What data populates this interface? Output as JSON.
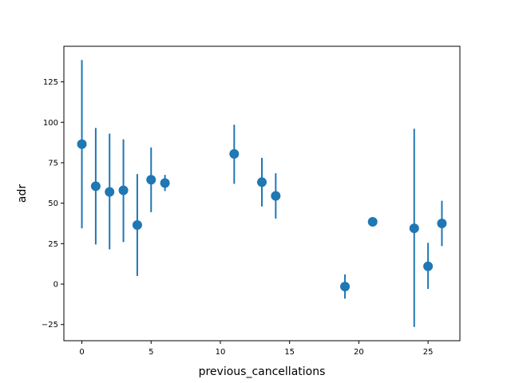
{
  "chart_data": {
    "type": "scatter",
    "xlabel": "previous_cancellations",
    "ylabel": "adr",
    "xlim": [
      -1.3,
      27.3
    ],
    "ylim": [
      -35,
      147
    ],
    "x_ticks": [
      0,
      5,
      10,
      15,
      20,
      25
    ],
    "y_ticks": [
      -25,
      0,
      25,
      50,
      75,
      100,
      125
    ],
    "grid": false,
    "color": "#1f77b4",
    "points": [
      {
        "x": 0,
        "y": 86.5,
        "low": 34.5,
        "high": 138.5
      },
      {
        "x": 1,
        "y": 60.5,
        "low": 24.5,
        "high": 96.5
      },
      {
        "x": 2,
        "y": 57.0,
        "low": 21.5,
        "high": 93.0
      },
      {
        "x": 3,
        "y": 58.0,
        "low": 26.0,
        "high": 89.5
      },
      {
        "x": 4,
        "y": 36.5,
        "low": 5.0,
        "high": 68.0
      },
      {
        "x": 5,
        "y": 64.5,
        "low": 44.5,
        "high": 84.5
      },
      {
        "x": 6,
        "y": 62.5,
        "low": 57.5,
        "high": 67.5
      },
      {
        "x": 11,
        "y": 80.5,
        "low": 62.0,
        "high": 98.5
      },
      {
        "x": 13,
        "y": 63.0,
        "low": 48.0,
        "high": 78.0
      },
      {
        "x": 14,
        "y": 54.5,
        "low": 40.5,
        "high": 68.5
      },
      {
        "x": 19,
        "y": -1.5,
        "low": -9.0,
        "high": 6.0
      },
      {
        "x": 21,
        "y": 38.5,
        "low": 38.5,
        "high": 38.5
      },
      {
        "x": 24,
        "y": 34.5,
        "low": -26.5,
        "high": 96.0
      },
      {
        "x": 25,
        "y": 11.0,
        "low": -3.0,
        "high": 25.5
      },
      {
        "x": 26,
        "y": 37.5,
        "low": 23.5,
        "high": 51.5
      }
    ]
  }
}
